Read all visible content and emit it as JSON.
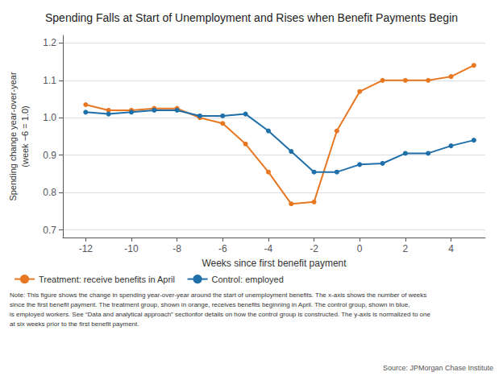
{
  "chart_data": {
    "type": "line",
    "title": "Spending Falls at Start of Unemployment and Rises when Benefit Payments Begin",
    "xlabel": "Weeks since first benefit payment",
    "ylabel": "Spending change year-over-year\n(week −6 = 1.0)",
    "xlim": [
      -13,
      5.5
    ],
    "ylim": [
      0.68,
      1.22
    ],
    "xticks": [
      -12,
      -10,
      -8,
      -6,
      -4,
      -2,
      0,
      2,
      4
    ],
    "yticks": [
      0.7,
      0.8,
      0.9,
      {
        "value": 1,
        "label": "1.0"
      },
      1.1,
      1.2
    ],
    "grid": "y",
    "legend": "bottom",
    "marker": "circle",
    "series": [
      {
        "name": "Treatment: receive benefits in April",
        "color": "#E87722",
        "x": [
          -12,
          -11,
          -10,
          -9,
          -8,
          -7,
          -6,
          -5,
          -4,
          -3,
          -2,
          -1,
          0,
          1,
          2,
          3,
          4,
          5
        ],
        "values": [
          1.035,
          1.02,
          1.02,
          1.025,
          1.025,
          1.0,
          0.985,
          0.93,
          0.855,
          0.77,
          0.775,
          0.965,
          1.07,
          1.1,
          1.1,
          1.1,
          1.11,
          1.14
        ]
      },
      {
        "name": "Control: employed",
        "color": "#1F6FA9",
        "x": [
          -12,
          -11,
          -10,
          -9,
          -8,
          -7,
          -6,
          -5,
          -4,
          -3,
          -2,
          -1,
          0,
          1,
          2,
          3,
          4,
          5
        ],
        "values": [
          1.015,
          1.01,
          1.015,
          1.02,
          1.02,
          1.005,
          1.005,
          1.01,
          0.965,
          0.91,
          0.855,
          0.855,
          0.875,
          0.878,
          0.905,
          0.905,
          0.925,
          0.94
        ]
      }
    ],
    "notes": [
      "Note: This figure shows the change in spending year-over-year around the start of unemployment benefits. The x-axis shows the number of weeks",
      "since the first benefit payment. The treatment group, shown in orange, receives benefits beginning in April. The control group, shown in blue,",
      "is employed workers. See “Data and analytical approach” sectionfor details on how the control group is constructed. The y-axis is normalized to one",
      "at six weeks prior to the first benefit payment."
    ],
    "source": "Source: JPMorgan Chase Institute"
  }
}
